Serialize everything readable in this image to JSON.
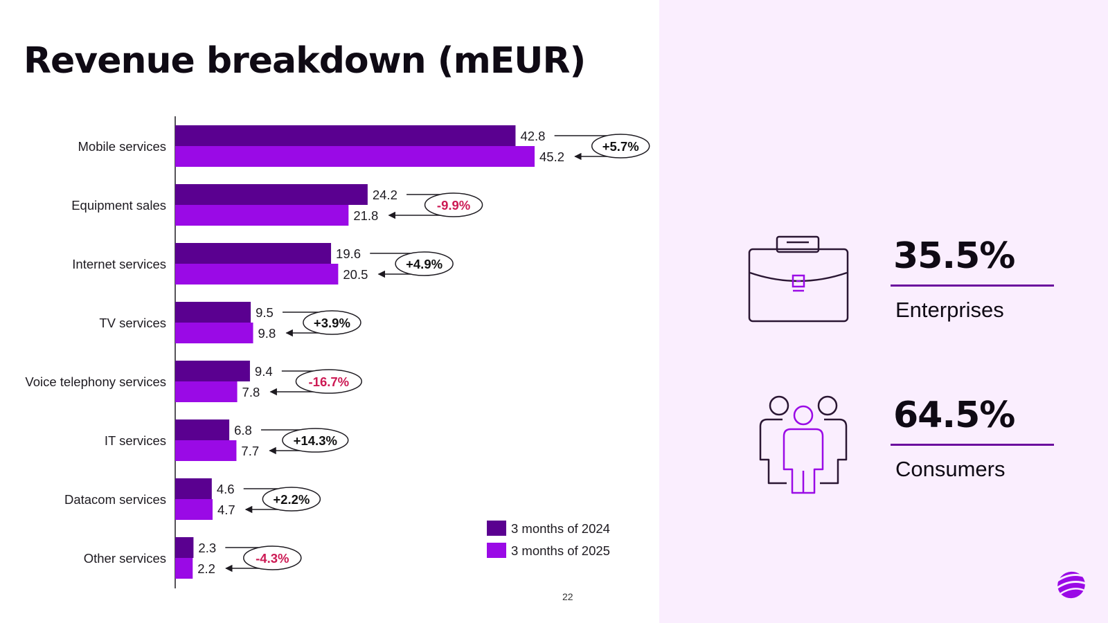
{
  "page": {
    "title": "Revenue breakdown (mEUR)",
    "page_number": "22"
  },
  "colors": {
    "series_2024": "#5a0090",
    "series_2025": "#9a0ae6",
    "positive_change": "#111111",
    "negative_change": "#cc1a54",
    "right_panel_bg": "#faeefe",
    "accent_line": "#6a0a9e"
  },
  "chart_data": {
    "type": "bar",
    "orientation": "horizontal",
    "categories": [
      "Mobile services",
      "Equipment sales",
      "Internet services",
      "TV services",
      "Voice telephony services",
      "IT services",
      "Datacom services",
      "Other services"
    ],
    "series": [
      {
        "name": "3 months of 2024",
        "values": [
          42.8,
          24.2,
          19.6,
          9.5,
          9.4,
          6.8,
          4.6,
          2.3
        ],
        "labels": [
          "42.8",
          "24.2",
          "19.6",
          "9.5",
          "9.4",
          "6.8",
          "4.6",
          "2.3"
        ]
      },
      {
        "name": "3 months of 2025",
        "values": [
          45.2,
          21.8,
          20.5,
          9.8,
          7.8,
          7.7,
          4.7,
          2.2
        ],
        "labels": [
          "45.2",
          "21.8",
          "20.5",
          "9.8",
          "7.8",
          "7.7",
          "4.7",
          "2.2"
        ]
      }
    ],
    "changes": [
      "+5.7%",
      "-9.9%",
      "+4.9%",
      "+3.9%",
      "-16.7%",
      "+14.3%",
      "+2.2%",
      "-4.3%"
    ],
    "legend_position": "bottom-right",
    "grid": false
  },
  "segments": [
    {
      "value": "35.5%",
      "label": "Enterprises",
      "icon": "briefcase-icon"
    },
    {
      "value": "64.5%",
      "label": "Consumers",
      "icon": "people-icon"
    }
  ],
  "logo": {
    "icon": "telia-logo-icon"
  }
}
